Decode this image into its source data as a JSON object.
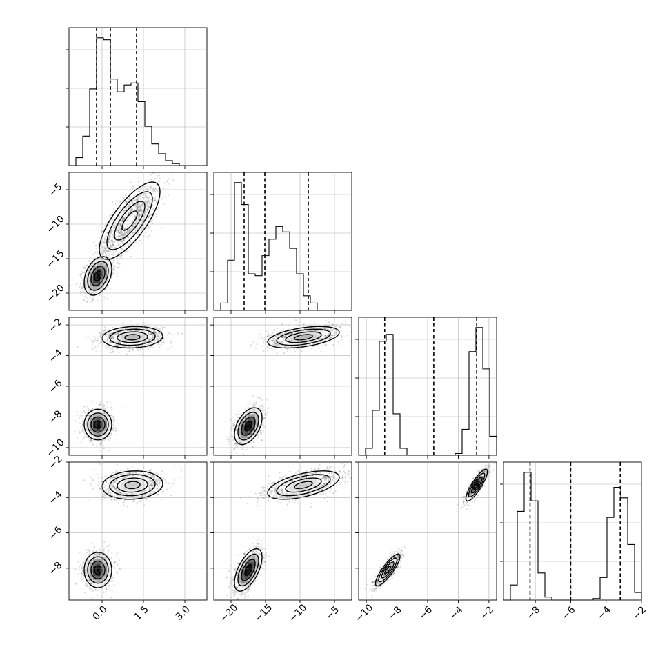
{
  "chart_data": {
    "type": "corner",
    "grid": true,
    "parameters": [
      {
        "index": 0,
        "range": [
          -1.2,
          3.8
        ],
        "ticks": [
          0.0,
          1.5,
          3.0
        ],
        "tick_labels": [
          "0.0",
          "1.5",
          "3.0"
        ]
      },
      {
        "index": 1,
        "range": [
          -22.5,
          -2.5
        ],
        "ticks": [
          -20,
          -15,
          -10,
          -5
        ],
        "tick_labels": [
          "−20",
          "−15",
          "−10",
          "−5"
        ]
      },
      {
        "index": 2,
        "range": [
          -10.5,
          -1.5
        ],
        "ticks": [
          -10,
          -8,
          -6,
          -4,
          -2
        ],
        "tick_labels": [
          "−10",
          "−8",
          "−6",
          "−4",
          "−2"
        ]
      },
      {
        "index": 3,
        "range": [
          -9.8,
          -2.0
        ],
        "ticks": [
          -8,
          -6,
          -4,
          -2
        ],
        "tick_labels": [
          "−8",
          "−6",
          "−4",
          "−2"
        ]
      }
    ],
    "histograms": [
      {
        "param": 0,
        "bin_start": -1.2,
        "bin_width": 0.25,
        "counts": [
          0,
          8,
          30,
          78,
          130,
          128,
          88,
          75,
          82,
          84,
          65,
          40,
          22,
          12,
          5,
          2,
          0,
          0,
          0,
          0
        ],
        "quantiles": [
          -0.2,
          0.3,
          1.25
        ]
      },
      {
        "param": 1,
        "bin_start": -22.5,
        "bin_width": 1.0,
        "counts": [
          0,
          8,
          55,
          140,
          116,
          40,
          38,
          60,
          78,
          92,
          86,
          68,
          40,
          16,
          8,
          0,
          0,
          0,
          0,
          0
        ],
        "quantiles": [
          -18.1,
          -15.1,
          -8.8
        ]
      },
      {
        "param": 2,
        "bin_start": -10.5,
        "bin_width": 0.45,
        "counts": [
          0,
          8,
          52,
          132,
          140,
          48,
          8,
          0,
          0,
          0,
          0,
          0,
          0,
          0,
          2,
          30,
          120,
          148,
          100,
          22
        ],
        "quantiles": [
          -8.8,
          -5.6,
          -2.8
        ]
      },
      {
        "param": 3,
        "bin_start": -9.8,
        "bin_width": 0.39,
        "counts": [
          0,
          20,
          118,
          170,
          132,
          36,
          4,
          0,
          0,
          0,
          0,
          0,
          0,
          2,
          30,
          110,
          150,
          136,
          74,
          10
        ],
        "quantiles": [
          -8.3,
          -6.0,
          -3.2
        ]
      }
    ],
    "joint_clusters": [
      {
        "row": 1,
        "col": 0,
        "clusters": [
          {
            "mean": [
              -0.15,
              -17.5
            ],
            "sd": [
              0.25,
              1.4
            ],
            "rho": 0.35,
            "weight": 0.5,
            "peak": true
          },
          {
            "mean": [
              1.0,
              -9.5
            ],
            "sd": [
              0.55,
              2.8
            ],
            "rho": 0.75,
            "weight": 0.5,
            "peak": false
          }
        ]
      },
      {
        "row": 2,
        "col": 0,
        "clusters": [
          {
            "mean": [
              -0.15,
              -8.5
            ],
            "sd": [
              0.25,
              0.5
            ],
            "rho": 0.0,
            "weight": 0.5,
            "peak": true
          },
          {
            "mean": [
              1.1,
              -2.8
            ],
            "sd": [
              0.55,
              0.35
            ],
            "rho": 0.1,
            "weight": 0.5,
            "peak": false
          }
        ]
      },
      {
        "row": 2,
        "col": 1,
        "clusters": [
          {
            "mean": [
              -17.5,
              -8.6
            ],
            "sd": [
              1.0,
              0.6
            ],
            "rho": 0.45,
            "weight": 0.5,
            "peak": true
          },
          {
            "mean": [
              -9.5,
              -2.8
            ],
            "sd": [
              2.6,
              0.35
            ],
            "rho": 0.45,
            "weight": 0.5,
            "peak": false
          }
        ]
      },
      {
        "row": 3,
        "col": 0,
        "clusters": [
          {
            "mean": [
              -0.15,
              -8.1
            ],
            "sd": [
              0.25,
              0.5
            ],
            "rho": 0.0,
            "weight": 0.5,
            "peak": true
          },
          {
            "mean": [
              1.1,
              -3.3
            ],
            "sd": [
              0.55,
              0.4
            ],
            "rho": 0.1,
            "weight": 0.5,
            "peak": false
          }
        ]
      },
      {
        "row": 3,
        "col": 1,
        "clusters": [
          {
            "mean": [
              -17.5,
              -8.1
            ],
            "sd": [
              1.0,
              0.6
            ],
            "rho": 0.6,
            "weight": 0.5,
            "peak": true
          },
          {
            "mean": [
              -9.5,
              -3.3
            ],
            "sd": [
              2.6,
              0.4
            ],
            "rho": 0.55,
            "weight": 0.5,
            "peak": false
          }
        ]
      },
      {
        "row": 3,
        "col": 2,
        "clusters": [
          {
            "mean": [
              -8.6,
              -8.1
            ],
            "sd": [
              0.4,
              0.45
            ],
            "rho": 0.85,
            "weight": 0.5,
            "peak": false
          },
          {
            "mean": [
              -2.8,
              -3.3
            ],
            "sd": [
              0.35,
              0.45
            ],
            "rho": 0.85,
            "weight": 0.5,
            "peak": true
          }
        ]
      }
    ]
  }
}
